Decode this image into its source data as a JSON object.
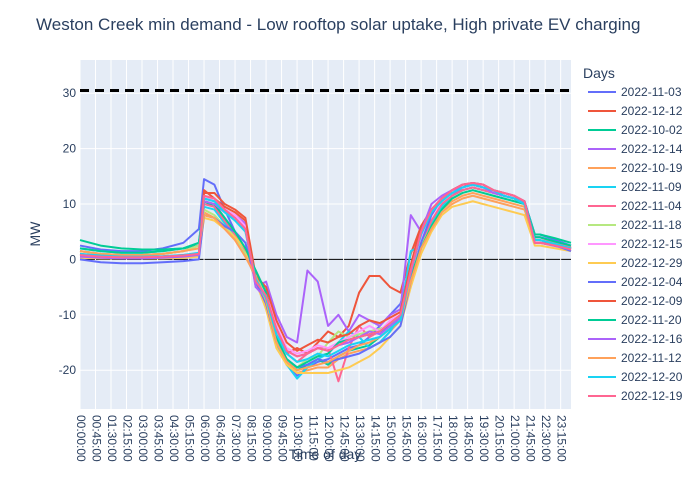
{
  "chart_data": {
    "type": "line",
    "title": "Weston Creek min demand - Low rooftop solar uptake, High private EV charging",
    "xlabel": "Time of day",
    "ylabel": "MW",
    "ylim": [
      -27,
      36
    ],
    "yticks": [
      30,
      20,
      10,
      0,
      -10,
      -20
    ],
    "x_tick_labels": [
      "00:00:00",
      "00:45:00",
      "01:30:00",
      "02:15:00",
      "03:00:00",
      "03:45:00",
      "04:30:00",
      "05:15:00",
      "06:00:00",
      "06:45:00",
      "07:30:00",
      "08:15:00",
      "09:00:00",
      "09:45:00",
      "10:30:00",
      "11:15:00",
      "12:00:00",
      "12:45:00",
      "13:30:00",
      "14:15:00",
      "15:00:00",
      "15:45:00",
      "16:30:00",
      "17:15:00",
      "18:00:00",
      "18:45:00",
      "19:30:00",
      "20:15:00",
      "21:00:00",
      "21:45:00",
      "22:30:00",
      "23:15:00"
    ],
    "x_range_hours": [
      0,
      23.75
    ],
    "reference_line": {
      "y": 30.5,
      "style": "dashed",
      "color": "#000000"
    },
    "legend": {
      "title": "Days",
      "placement": "right"
    },
    "x_hours": [
      0,
      1,
      2,
      3,
      4,
      5,
      5.75,
      6,
      6.5,
      7,
      7.5,
      8,
      8.5,
      9,
      9.5,
      10,
      10.5,
      11,
      11.5,
      12,
      12.5,
      13,
      13.5,
      14,
      14.5,
      15,
      15.5,
      16,
      16.5,
      17,
      17.5,
      18,
      18.5,
      19,
      19.5,
      20,
      20.5,
      21,
      21.5,
      22,
      22.25,
      23,
      23.75
    ],
    "series": [
      {
        "name": "2022-11-03",
        "color": "#636efa",
        "values": [
          2.5,
          1.8,
          1.5,
          1.5,
          2.0,
          3.0,
          5.5,
          14.5,
          13.5,
          9.0,
          5.0,
          1.0,
          -3.5,
          -8.0,
          -15.0,
          -19.0,
          -21.0,
          -19.5,
          -18.5,
          -18.0,
          -17.0,
          -16.0,
          -15.5,
          -14.0,
          -12.0,
          -10.0,
          -8.0,
          -2.0,
          3.0,
          7.0,
          9.5,
          11.5,
          13.0,
          13.5,
          13.0,
          12.5,
          11.5,
          11.0,
          10.5,
          4.5,
          4.5,
          3.5,
          2.5
        ]
      },
      {
        "name": "2022-12-12",
        "color": "#ef553b",
        "values": [
          1.0,
          0.5,
          0.3,
          0.3,
          0.5,
          0.8,
          1.0,
          12.5,
          11.0,
          9.5,
          8.5,
          7.0,
          -4.0,
          -7.0,
          -12.0,
          -17.0,
          -16.0,
          -17.0,
          -15.0,
          -13.0,
          -14.0,
          -12.0,
          -6.0,
          -3.0,
          -3.0,
          -5.0,
          -6.0,
          1.0,
          6.0,
          9.0,
          11.0,
          12.5,
          13.5,
          13.5,
          13.0,
          12.0,
          11.5,
          11.0,
          10.0,
          3.5,
          3.5,
          2.8,
          2.0
        ]
      },
      {
        "name": "2022-10-02",
        "color": "#00cc96",
        "values": [
          3.5,
          2.5,
          2.0,
          1.8,
          1.8,
          2.0,
          2.5,
          10.5,
          9.5,
          7.0,
          4.5,
          1.5,
          -2.0,
          -6.0,
          -14.0,
          -18.5,
          -20.0,
          -19.0,
          -18.0,
          -19.0,
          -17.5,
          -16.5,
          -16.0,
          -15.5,
          -14.0,
          -12.5,
          -11.0,
          -3.0,
          3.0,
          6.5,
          9.5,
          11.5,
          12.5,
          13.0,
          12.5,
          12.0,
          11.5,
          11.0,
          10.5,
          4.5,
          4.5,
          3.8,
          3.0
        ]
      },
      {
        "name": "2022-12-14",
        "color": "#ab63fa",
        "values": [
          0.5,
          0.3,
          0.3,
          0.3,
          0.3,
          0.5,
          0.8,
          11.0,
          10.5,
          9.0,
          8.0,
          6.5,
          -5.0,
          -4.0,
          -10.0,
          -14.0,
          -15.0,
          -2.0,
          -4.0,
          -12.0,
          -10.0,
          -13.0,
          -10.0,
          -11.0,
          -12.0,
          -10.0,
          -9.0,
          8.0,
          5.0,
          9.0,
          11.0,
          12.0,
          13.0,
          13.5,
          13.0,
          12.5,
          11.5,
          11.0,
          10.0,
          3.0,
          3.0,
          2.5,
          1.8
        ]
      },
      {
        "name": "2022-10-19",
        "color": "#ffa15a",
        "values": [
          1.5,
          1.0,
          0.8,
          0.8,
          1.0,
          1.5,
          2.5,
          8.5,
          7.5,
          5.5,
          3.5,
          0.5,
          -3.0,
          -7.0,
          -15.5,
          -19.0,
          -20.5,
          -20.0,
          -19.5,
          -19.5,
          -18.0,
          -17.0,
          -16.5,
          -16.0,
          -15.0,
          -13.0,
          -11.0,
          -4.0,
          2.5,
          6.0,
          9.0,
          10.5,
          11.5,
          12.0,
          11.5,
          11.0,
          10.5,
          10.0,
          9.5,
          3.5,
          3.5,
          2.8,
          2.0
        ]
      },
      {
        "name": "2022-11-09",
        "color": "#19d3f3",
        "values": [
          2.0,
          1.5,
          1.2,
          1.2,
          1.5,
          2.0,
          3.0,
          9.5,
          9.0,
          6.5,
          4.0,
          1.0,
          -2.5,
          -7.0,
          -15.0,
          -19.0,
          -21.5,
          -19.5,
          -18.0,
          -17.0,
          -15.0,
          -13.0,
          -14.0,
          -16.0,
          -15.0,
          -13.0,
          -10.0,
          1.5,
          2.5,
          6.5,
          9.5,
          11.5,
          12.5,
          13.0,
          12.5,
          12.0,
          11.5,
          11.0,
          10.5,
          4.0,
          4.0,
          3.2,
          2.5
        ]
      },
      {
        "name": "2022-11-04",
        "color": "#ff6692",
        "values": [
          1.5,
          1.0,
          0.8,
          0.8,
          1.0,
          1.5,
          2.5,
          10.0,
          9.5,
          7.0,
          4.5,
          1.5,
          -2.0,
          -6.0,
          -13.5,
          -17.0,
          -18.5,
          -17.0,
          -16.0,
          -16.0,
          -22.0,
          -16.0,
          -12.0,
          -14.0,
          -13.0,
          -12.0,
          -10.0,
          -3.0,
          3.0,
          7.0,
          10.0,
          11.5,
          12.5,
          13.0,
          12.5,
          12.0,
          11.5,
          11.0,
          10.0,
          4.0,
          4.0,
          3.0,
          2.2
        ]
      },
      {
        "name": "2022-11-18",
        "color": "#b6e880",
        "values": [
          1.5,
          1.0,
          0.8,
          0.8,
          1.0,
          1.5,
          2.5,
          9.0,
          8.0,
          6.0,
          4.0,
          1.0,
          -2.5,
          -7.0,
          -14.5,
          -18.0,
          -19.5,
          -18.0,
          -17.5,
          -15.0,
          -13.0,
          -14.0,
          -13.5,
          -13.0,
          -12.5,
          -12.0,
          -10.0,
          -3.0,
          2.5,
          6.0,
          9.0,
          11.0,
          12.0,
          12.5,
          12.0,
          11.5,
          11.0,
          10.5,
          10.0,
          3.5,
          3.5,
          2.8,
          2.0
        ]
      },
      {
        "name": "2022-12-15",
        "color": "#ff97ff",
        "values": [
          0.5,
          0.3,
          0.3,
          0.3,
          0.3,
          0.5,
          0.8,
          11.5,
          10.5,
          9.0,
          8.0,
          6.0,
          -4.5,
          -6.0,
          -12.0,
          -16.0,
          -17.0,
          -16.5,
          -15.5,
          -16.0,
          -15.0,
          -14.0,
          -13.0,
          -12.0,
          -13.0,
          -11.0,
          -10.0,
          -2.0,
          4.0,
          8.0,
          10.5,
          12.0,
          13.0,
          13.5,
          13.0,
          12.0,
          11.5,
          11.0,
          10.0,
          3.0,
          3.0,
          2.5,
          1.8
        ]
      },
      {
        "name": "2022-12-29",
        "color": "#fecb52",
        "values": [
          0.3,
          0.2,
          0.2,
          0.2,
          0.2,
          0.3,
          0.5,
          7.5,
          7.0,
          5.5,
          4.0,
          2.0,
          -4.0,
          -9.0,
          -16.0,
          -19.0,
          -20.5,
          -20.5,
          -20.5,
          -20.5,
          -20.0,
          -19.5,
          -18.5,
          -17.5,
          -16.0,
          -14.0,
          -12.0,
          -5.0,
          1.0,
          5.0,
          8.0,
          9.5,
          10.0,
          10.5,
          10.0,
          9.5,
          9.0,
          8.5,
          8.0,
          2.5,
          2.5,
          2.0,
          1.5
        ]
      },
      {
        "name": "2022-12-04",
        "color": "#636efa",
        "values": [
          0.0,
          -0.5,
          -0.7,
          -0.7,
          -0.5,
          -0.3,
          0.0,
          8.0,
          7.5,
          6.0,
          5.0,
          3.0,
          -4.0,
          -8.0,
          -15.0,
          -18.0,
          -19.5,
          -19.0,
          -18.0,
          -18.5,
          -18.0,
          -17.5,
          -17.0,
          -16.0,
          -15.0,
          -14.0,
          -12.0,
          -4.0,
          3.0,
          8.0,
          11.0,
          12.5,
          13.5,
          13.8,
          13.5,
          12.5,
          12.0,
          11.5,
          10.5,
          3.5,
          3.5,
          2.5,
          1.5
        ]
      },
      {
        "name": "2022-12-09",
        "color": "#ef553b",
        "values": [
          0.8,
          0.5,
          0.4,
          0.4,
          0.5,
          0.7,
          1.0,
          12.0,
          12.0,
          10.0,
          9.0,
          7.5,
          -3.0,
          -5.0,
          -11.0,
          -15.0,
          -16.5,
          -15.5,
          -14.5,
          -15.0,
          -14.0,
          -13.5,
          -12.0,
          -11.0,
          -11.5,
          -10.5,
          -9.5,
          -1.0,
          6.0,
          9.0,
          11.0,
          12.5,
          13.5,
          13.8,
          13.5,
          12.5,
          12.0,
          11.5,
          10.5,
          3.0,
          3.0,
          2.5,
          1.8
        ]
      },
      {
        "name": "2022-11-20",
        "color": "#00cc96",
        "values": [
          2.0,
          1.5,
          1.2,
          1.2,
          1.5,
          2.0,
          3.0,
          10.5,
          10.0,
          7.5,
          5.0,
          2.0,
          -2.0,
          -6.0,
          -14.0,
          -18.0,
          -19.5,
          -18.5,
          -17.5,
          -17.0,
          -15.0,
          -14.5,
          -14.0,
          -13.5,
          -13.0,
          -12.0,
          -10.5,
          -3.0,
          2.0,
          6.0,
          9.0,
          11.0,
          12.0,
          12.5,
          12.0,
          11.5,
          11.0,
          10.5,
          10.0,
          4.0,
          4.0,
          3.2,
          2.5
        ]
      },
      {
        "name": "2022-12-16",
        "color": "#ab63fa",
        "values": [
          0.5,
          0.3,
          0.2,
          0.2,
          0.3,
          0.5,
          0.8,
          10.5,
          10.0,
          8.5,
          7.5,
          5.5,
          -5.0,
          -7.0,
          -12.5,
          -16.5,
          -17.5,
          -17.0,
          -16.0,
          -16.5,
          -15.5,
          -15.0,
          -14.0,
          -13.0,
          -13.5,
          -12.0,
          -10.5,
          -2.5,
          5.0,
          10.0,
          11.5,
          12.5,
          13.0,
          13.5,
          13.0,
          12.0,
          11.5,
          11.0,
          10.0,
          3.0,
          3.0,
          2.4,
          1.8
        ]
      },
      {
        "name": "2022-11-12",
        "color": "#ffa15a",
        "values": [
          1.5,
          1.0,
          0.8,
          0.8,
          1.0,
          1.5,
          2.0,
          8.0,
          7.5,
          5.5,
          3.5,
          0.5,
          -3.0,
          -7.5,
          -15.0,
          -18.5,
          -20.0,
          -19.5,
          -19.0,
          -18.5,
          -17.5,
          -16.5,
          -15.5,
          -15.0,
          -14.0,
          -12.5,
          -11.0,
          -4.0,
          2.0,
          5.5,
          8.5,
          10.0,
          11.0,
          11.5,
          11.0,
          10.5,
          10.0,
          9.5,
          9.0,
          3.5,
          3.5,
          2.8,
          2.0
        ]
      },
      {
        "name": "2022-12-20",
        "color": "#19d3f3",
        "values": [
          1.0,
          0.7,
          0.5,
          0.5,
          0.6,
          0.8,
          1.2,
          11.0,
          10.5,
          8.5,
          7.0,
          5.0,
          -3.5,
          -7.0,
          -13.5,
          -17.0,
          -18.5,
          -18.0,
          -17.0,
          -17.5,
          -16.5,
          -15.5,
          -15.0,
          -14.5,
          -14.0,
          -12.5,
          -11.0,
          -2.0,
          4.5,
          8.5,
          10.5,
          12.0,
          13.0,
          13.5,
          13.0,
          12.5,
          11.5,
          11.0,
          10.0,
          3.5,
          3.5,
          2.8,
          2.0
        ]
      },
      {
        "name": "2022-12-19",
        "color": "#ff6692",
        "values": [
          0.8,
          0.5,
          0.4,
          0.4,
          0.5,
          0.7,
          1.0,
          11.5,
          11.0,
          9.0,
          7.5,
          5.5,
          -4.0,
          -6.5,
          -12.5,
          -16.5,
          -17.5,
          -17.0,
          -16.0,
          -16.5,
          -15.5,
          -14.5,
          -14.0,
          -13.5,
          -13.0,
          -11.5,
          -10.0,
          -2.0,
          5.0,
          9.0,
          11.0,
          12.5,
          13.5,
          13.8,
          13.5,
          12.5,
          12.0,
          11.5,
          10.5,
          3.0,
          3.0,
          2.5,
          1.8
        ]
      }
    ]
  }
}
